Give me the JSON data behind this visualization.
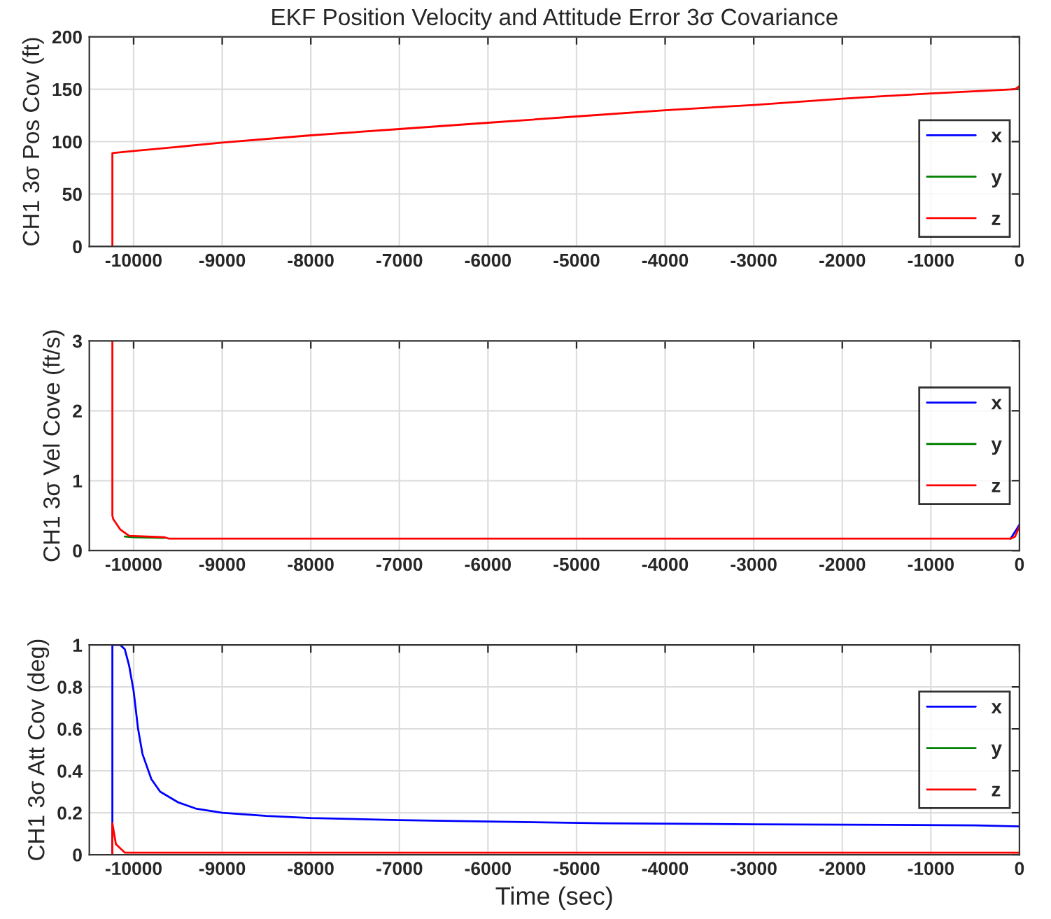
{
  "chart_data": [
    {
      "type": "line",
      "title": "EKF Position Velocity and Attitude Error 3σ Covariance",
      "ylabel": "CH1 3σ Pos Cov (ft)",
      "xlim": [
        -10500,
        0
      ],
      "xticks": [
        -10000,
        -9000,
        -8000,
        -7000,
        -6000,
        -5000,
        -4000,
        -3000,
        -2000,
        -1000,
        0
      ],
      "ylim": [
        0,
        200
      ],
      "yticks": [
        0,
        50,
        100,
        150,
        200
      ],
      "grid": true,
      "legend": "bottom right",
      "series": [
        {
          "name": "x",
          "color": "#0000ff"
        },
        {
          "name": "y",
          "color": "#008000"
        },
        {
          "name": "z",
          "color": "#ff0000",
          "x": [
            -10240,
            -10240,
            -10000,
            -9000,
            -8000,
            -7000,
            -6000,
            -5000,
            -4000,
            -3000,
            -2000,
            -1000,
            -50,
            0
          ],
          "values": [
            0,
            89,
            91,
            99,
            106,
            112,
            118,
            124,
            130,
            135,
            141,
            146,
            150,
            153
          ]
        }
      ]
    },
    {
      "type": "line",
      "ylabel": "CH1 3σ Vel Cove (ft/s)",
      "xlim": [
        -10500,
        0
      ],
      "xticks": [
        -10000,
        -9000,
        -8000,
        -7000,
        -6000,
        -5000,
        -4000,
        -3000,
        -2000,
        -1000,
        0
      ],
      "ylim": [
        0,
        3
      ],
      "yticks": [
        0,
        1,
        2,
        3
      ],
      "grid": true,
      "legend": "right",
      "series": [
        {
          "name": "x",
          "color": "#0000ff",
          "x": [
            -100,
            0
          ],
          "values": [
            0.17,
            0.37
          ]
        },
        {
          "name": "y",
          "color": "#008000",
          "x": [
            -10100,
            -10000,
            -9650
          ],
          "values": [
            0.2,
            0.19,
            0.18
          ]
        },
        {
          "name": "z",
          "color": "#ff0000",
          "x": [
            -10240,
            -10240,
            -10230,
            -10150,
            -10050,
            -9650,
            -9600,
            -100,
            -50,
            0
          ],
          "values": [
            3,
            0.5,
            0.45,
            0.3,
            0.21,
            0.19,
            0.17,
            0.17,
            0.2,
            0.35
          ]
        }
      ]
    },
    {
      "type": "line",
      "xlabel": "Time (sec)",
      "ylabel": "CH1 3σ Att Cov (deg)",
      "xlim": [
        -10500,
        0
      ],
      "xticks": [
        -10000,
        -9000,
        -8000,
        -7000,
        -6000,
        -5000,
        -4000,
        -3000,
        -2000,
        -1000,
        0
      ],
      "ylim": [
        0,
        1
      ],
      "yticks": [
        0,
        0.2,
        0.4,
        0.6,
        0.8,
        1
      ],
      "grid": true,
      "legend": "right",
      "series": [
        {
          "name": "x",
          "color": "#0000ff",
          "x": [
            -10240,
            -10240,
            -10150,
            -10100,
            -10050,
            -10000,
            -9950,
            -9900,
            -9800,
            -9700,
            -9500,
            -9300,
            -9000,
            -8500,
            -8000,
            -7000,
            -6000,
            -4700,
            -3000,
            -500,
            0
          ],
          "values": [
            0,
            1.0,
            1.0,
            0.98,
            0.9,
            0.78,
            0.6,
            0.48,
            0.36,
            0.3,
            0.25,
            0.22,
            0.2,
            0.185,
            0.175,
            0.165,
            0.158,
            0.15,
            0.145,
            0.14,
            0.135
          ]
        },
        {
          "name": "y",
          "color": "#008000"
        },
        {
          "name": "z",
          "color": "#ff0000",
          "x": [
            -10240,
            -10240,
            -10200,
            -10100,
            0
          ],
          "values": [
            0,
            0.15,
            0.05,
            0.01,
            0.01
          ]
        }
      ]
    }
  ]
}
